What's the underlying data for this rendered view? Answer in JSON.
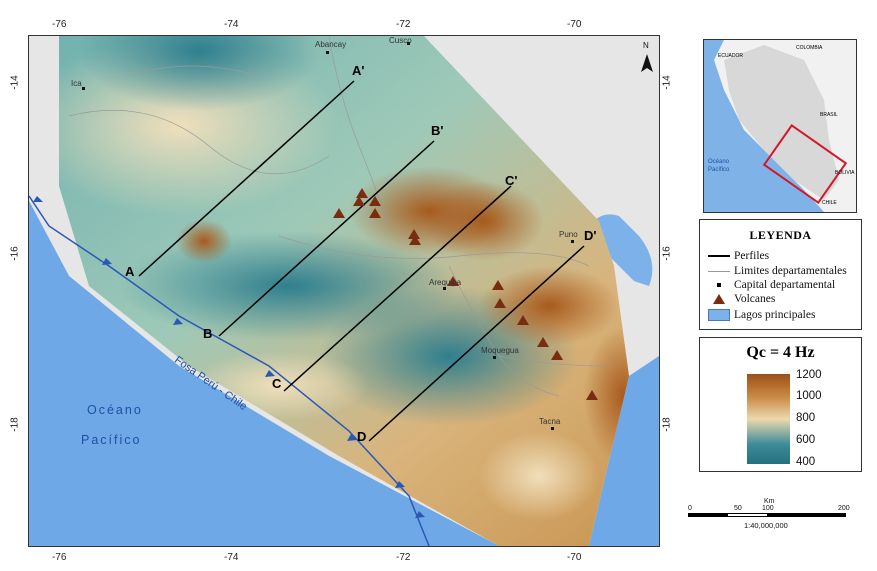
{
  "axes": {
    "top_lon": [
      "-76",
      "-74",
      "-72",
      "-70"
    ],
    "bottom_lon": [
      "-76",
      "-74",
      "-72",
      "-70"
    ],
    "left_lat": [
      "-14",
      "-16",
      "-18"
    ],
    "right_lat": [
      "-14",
      "-16",
      "-18"
    ]
  },
  "map_labels": {
    "abancay": "Abancay",
    "cusco": "Cusco",
    "ica": "Ica",
    "arequipa": "Arequipa",
    "puno": "Puno",
    "moquegua": "Moquegua",
    "tacna": "Tacna",
    "north": "N",
    "ocean_line1": "Océano",
    "ocean_line2": "Pacífico",
    "trench": "Fosa Perú - Chile"
  },
  "profiles": [
    {
      "start": "A",
      "end": "A'"
    },
    {
      "start": "B",
      "end": "B'"
    },
    {
      "start": "C",
      "end": "C'"
    },
    {
      "start": "D",
      "end": "D'"
    }
  ],
  "inset": {
    "ecuador": "ECUADOR",
    "colombia": "COLOMBIA",
    "brasil": "BRASIL",
    "bolivia": "BOLIVIA",
    "chile": "CHILE",
    "ocean_line1": "Océano",
    "ocean_line2": "Pacífico"
  },
  "legend": {
    "title": "LEYENDA",
    "items": [
      "Perfiles",
      "Limites departamentales",
      "Capital departamental",
      "Volcanes",
      "Lagos principales"
    ]
  },
  "colorbar": {
    "title": "Qc = 4 Hz",
    "labels": [
      "1200",
      "1000",
      "800",
      "600",
      "400"
    ]
  },
  "scalebar": {
    "unit": "Km",
    "ticks": [
      "0",
      "50",
      "100",
      "200"
    ],
    "ratio": "1:40,000,000"
  },
  "colors": {
    "ocean": "#6fa8e6",
    "high_q": "#9c5119",
    "mid_q": "#ecd8ad",
    "low_q": "#24707f",
    "volcano": "#7a2c10",
    "land": "#e8e8e8"
  }
}
